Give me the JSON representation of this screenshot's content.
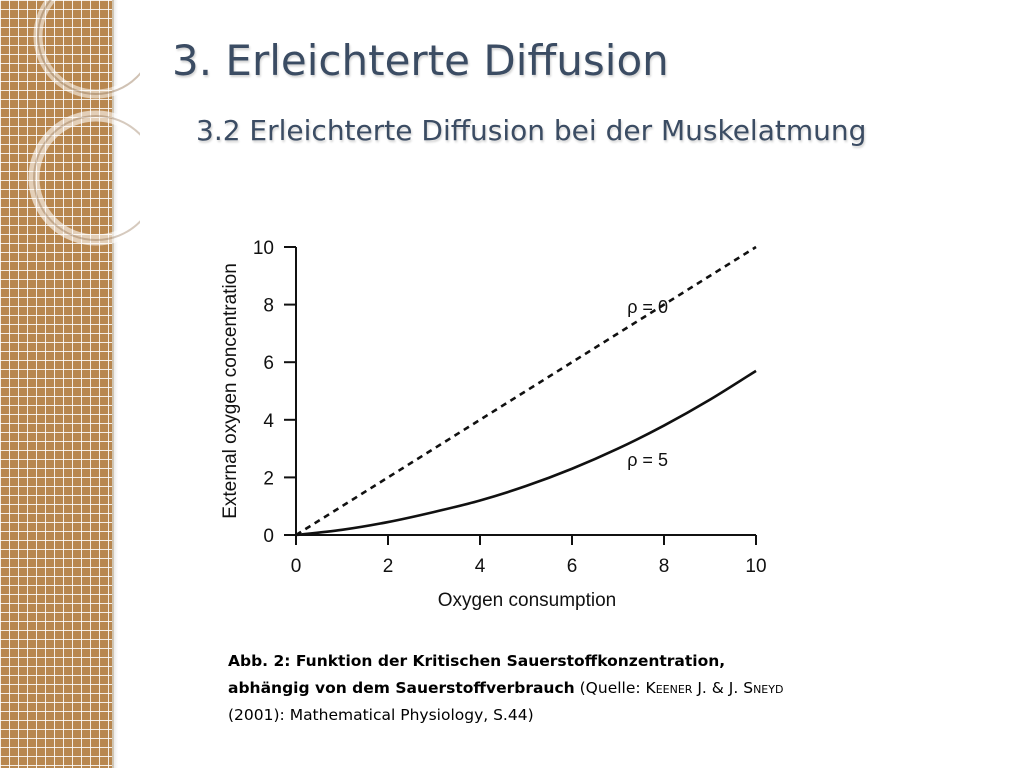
{
  "slide": {
    "title": "3. Erleichterte Diffusion",
    "subtitle": "3.2 Erleichterte Diffusion bei der Muskelatmung"
  },
  "caption": {
    "bold": "Abb. 2: Funktion der Kritischen Sauerstoffkonzentration, abhängig von dem Sauerstoffverbrauch",
    "source_prefix": " (Quelle: ",
    "author1": "Keener",
    "author_joiner": " J. & J. ",
    "author2": "Sneyd",
    "source_rest": " (2001): Mathematical Physiology, S.44)"
  },
  "colors": {
    "band": "#b8874f",
    "title": "#3b4c63"
  },
  "chart_data": {
    "type": "line",
    "title": "",
    "xlabel": "Oxygen consumption",
    "ylabel": "External oxygen concentration",
    "xlim": [
      0,
      10
    ],
    "ylim": [
      0,
      10
    ],
    "xticks": [
      "0",
      "2",
      "4",
      "6",
      "8",
      "10"
    ],
    "yticks": [
      "0",
      "2",
      "4",
      "6",
      "8",
      "10"
    ],
    "grid": false,
    "series": [
      {
        "name": "ρ = 0",
        "style": "dashed",
        "x": [
          0,
          2,
          4,
          6,
          8,
          10
        ],
        "y": [
          0,
          2,
          4,
          6,
          8,
          10
        ]
      },
      {
        "name": "ρ = 5",
        "style": "solid",
        "x": [
          0,
          1,
          2,
          3,
          4,
          5,
          6,
          7,
          8,
          9,
          10
        ],
        "y": [
          0,
          0.18,
          0.45,
          0.8,
          1.2,
          1.7,
          2.3,
          3.0,
          3.8,
          4.7,
          5.7
        ]
      }
    ],
    "annotations": [
      {
        "text": "ρ = 0",
        "x": 7.2,
        "y": 7.7
      },
      {
        "text": "ρ = 5",
        "x": 7.2,
        "y": 2.4
      }
    ]
  }
}
